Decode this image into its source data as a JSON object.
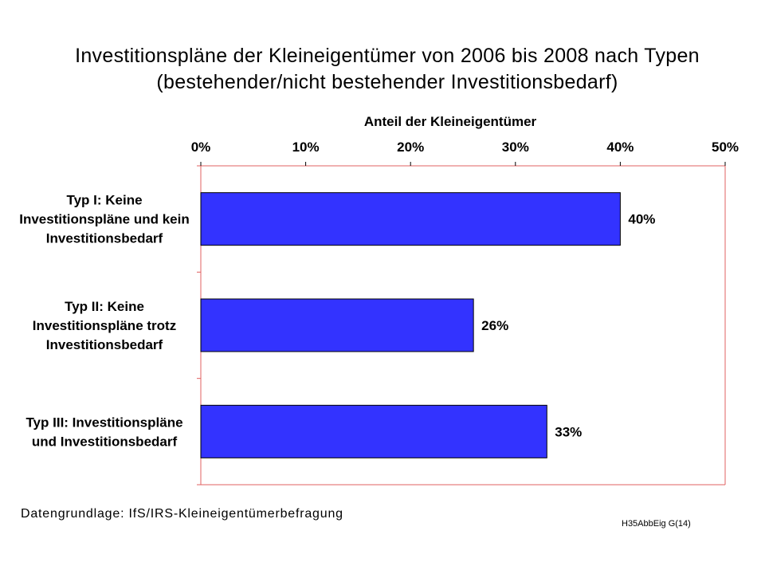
{
  "chart_data": {
    "type": "bar",
    "orientation": "horizontal",
    "title_lines": [
      "Investitionspläne der Kleineigentümer von 2006 bis 2008 nach Typen",
      "(bestehender/nicht bestehender Investitionsbedarf)"
    ],
    "xlabel": "Anteil der Kleineigentümer",
    "x_axis_position": "top",
    "xlim": [
      0,
      50
    ],
    "x_ticks": [
      0,
      10,
      20,
      30,
      40,
      50
    ],
    "x_tick_labels": [
      "0%",
      "10%",
      "20%",
      "30%",
      "40%",
      "50%"
    ],
    "categories": [
      [
        "Typ I: Keine",
        "Investitionspläne und kein",
        "Investitionsbedarf"
      ],
      [
        "Typ II: Keine",
        "Investitionspläne trotz",
        "Investitionsbedarf"
      ],
      [
        "Typ III: Investitionspläne",
        "und Investitionsbedarf"
      ]
    ],
    "values": [
      40,
      26,
      33
    ],
    "data_labels": [
      "40%",
      "26%",
      "33%"
    ],
    "grid": false,
    "legend": "none",
    "bar_color": "#3333FF",
    "frame_color": "#E06060"
  },
  "footer": {
    "source": "Datengrundlage:  IfS/IRS-Kleineigentümerbefragung",
    "code": "H35AbbEig G(14)"
  }
}
